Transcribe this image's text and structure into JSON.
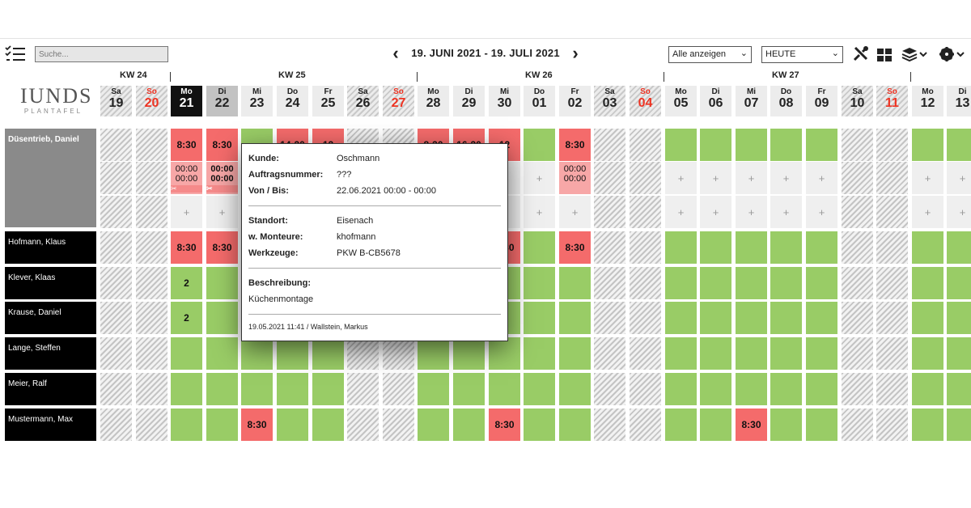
{
  "toolbar": {
    "search_placeholder": "Suche...",
    "date_range": "19. JUNI 2021 - 19. JULI 2021",
    "filter_value": "Alle anzeigen",
    "goto_value": "HEUTE"
  },
  "logo": {
    "big": "IUNDS",
    "small": "PLANTAFEL"
  },
  "weeks": [
    "KW 24",
    "KW 25",
    "KW 26",
    "KW 27"
  ],
  "days": [
    {
      "n": "Sa",
      "d": "19"
    },
    {
      "n": "So",
      "d": "20"
    },
    {
      "n": "Mo",
      "d": "21"
    },
    {
      "n": "Di",
      "d": "22"
    },
    {
      "n": "Mi",
      "d": "23"
    },
    {
      "n": "Do",
      "d": "24"
    },
    {
      "n": "Fr",
      "d": "25"
    },
    {
      "n": "Sa",
      "d": "26"
    },
    {
      "n": "So",
      "d": "27"
    },
    {
      "n": "Mo",
      "d": "28"
    },
    {
      "n": "Di",
      "d": "29"
    },
    {
      "n": "Mi",
      "d": "30"
    },
    {
      "n": "Do",
      "d": "01"
    },
    {
      "n": "Fr",
      "d": "02"
    },
    {
      "n": "Sa",
      "d": "03"
    },
    {
      "n": "So",
      "d": "04"
    },
    {
      "n": "Mo",
      "d": "05"
    },
    {
      "n": "Di",
      "d": "06"
    },
    {
      "n": "Mi",
      "d": "07"
    },
    {
      "n": "Do",
      "d": "08"
    },
    {
      "n": "Fr",
      "d": "09"
    },
    {
      "n": "Sa",
      "d": "10"
    },
    {
      "n": "So",
      "d": "11"
    },
    {
      "n": "Mo",
      "d": "12"
    },
    {
      "n": "Di",
      "d": "13"
    }
  ],
  "employees": [
    "Düsentrieb, Daniel",
    "Hofmann, Klaus",
    "Klever, Klaas",
    "Krause, Daniel",
    "Lange, Steffen",
    "Meier, Ralf",
    "Mustermann, Max"
  ],
  "cells": {
    "time": "8:30",
    "count": "2",
    "plus": "+",
    "zero": "00:00",
    "wrench": "✂",
    "partial_24": "14:30",
    "partial_25": "12",
    "partial_28": "8:30",
    "partial_29": "16:30",
    "partial_30": "12"
  },
  "popup": {
    "kunde_l": "Kunde:",
    "kunde_v": "Oschmann",
    "auftrag_l": "Auftragsnummer:",
    "auftrag_v": "???",
    "von_l": "Von / Bis:",
    "von_v": "22.06.2021 00:00 - 00:00",
    "standort_l": "Standort:",
    "standort_v": "Eisenach",
    "monteure_l": "w. Monteure:",
    "monteure_v": "khofmann",
    "werkzeuge_l": "Werkzeuge:",
    "werkzeuge_v": "PKW B-CB5678",
    "beschreibung_l": "Beschreibung:",
    "beschreibung_v": "Küchenmontage",
    "footer": "19.05.2021 11:41 / Wallstein, Markus"
  }
}
